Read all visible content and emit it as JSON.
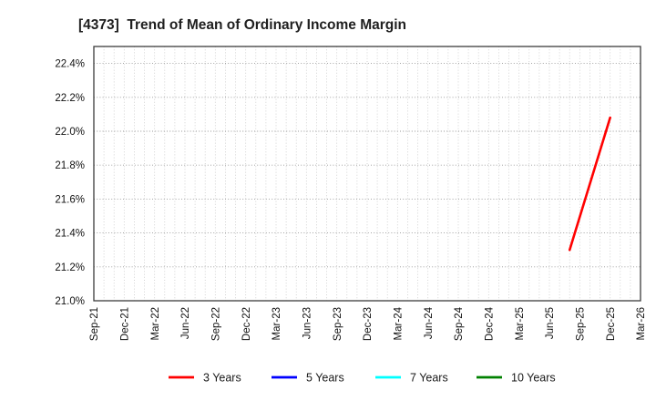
{
  "window": {
    "title": "[4373]  Trend of Mean of Ordinary Income Margin"
  },
  "chart_data": {
    "type": "line",
    "title": "[4373]  Trend of Mean of Ordinary Income Margin",
    "xlabel": "",
    "ylabel": "",
    "y_unit": "%",
    "ylim": [
      21.0,
      22.5
    ],
    "ytick_values": [
      21.0,
      21.2,
      21.4,
      21.6,
      21.8,
      22.0,
      22.2,
      22.4
    ],
    "ytick_labels": [
      "21.0%",
      "21.2%",
      "21.4%",
      "21.6%",
      "21.8%",
      "22.0%",
      "22.2%",
      "22.4%"
    ],
    "x_ticks": [
      "Sep-21",
      "Dec-21",
      "Mar-22",
      "Jun-22",
      "Sep-22",
      "Dec-22",
      "Mar-23",
      "Jun-23",
      "Sep-23",
      "Dec-23",
      "Mar-24",
      "Jun-24",
      "Sep-24",
      "Dec-24",
      "Mar-25",
      "Jun-25",
      "Sep-25",
      "Dec-25",
      "Mar-26"
    ],
    "x_tick_interval_months": 3,
    "x_months_total": 54,
    "x_minor_gridline_unit_months": 1,
    "grid": true,
    "legend_position": "bottom",
    "frame_color": "#3c3c3c",
    "grid_minor_color": "#c9c9c9",
    "grid_major_color": "#979797",
    "series": [
      {
        "name": "3 Years",
        "color": "#ff0000",
        "points": [
          {
            "x": "Aug-25",
            "month_index": 47,
            "y": 21.3
          },
          {
            "x": "Dec-25",
            "month_index": 51,
            "y": 22.08
          }
        ]
      },
      {
        "name": "5 Years",
        "color": "#0000ff",
        "points": []
      },
      {
        "name": "7 Years",
        "color": "#00ffff",
        "points": []
      },
      {
        "name": "10 Years",
        "color": "#008000",
        "points": []
      }
    ]
  }
}
